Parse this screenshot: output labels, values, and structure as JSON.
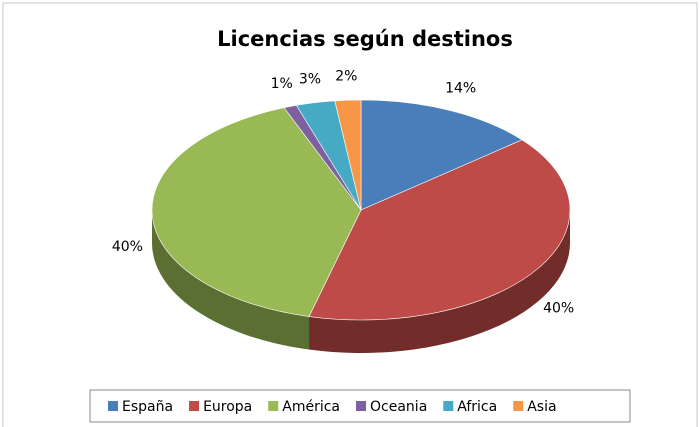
{
  "chart_data": {
    "type": "pie",
    "title": "Licencias según destinos",
    "categories": [
      "España",
      "Europa",
      "América",
      "Oceania",
      "Africa",
      "Asia"
    ],
    "values": [
      14,
      40,
      40,
      1,
      3,
      2
    ],
    "value_labels": [
      "14%",
      "40%",
      "40%",
      "1%",
      "3%",
      "2%"
    ],
    "colors": [
      "#4a7ebb",
      "#be4b48",
      "#98b954",
      "#7d60a0",
      "#46aac5",
      "#f79646"
    ],
    "legend": "bottom"
  }
}
